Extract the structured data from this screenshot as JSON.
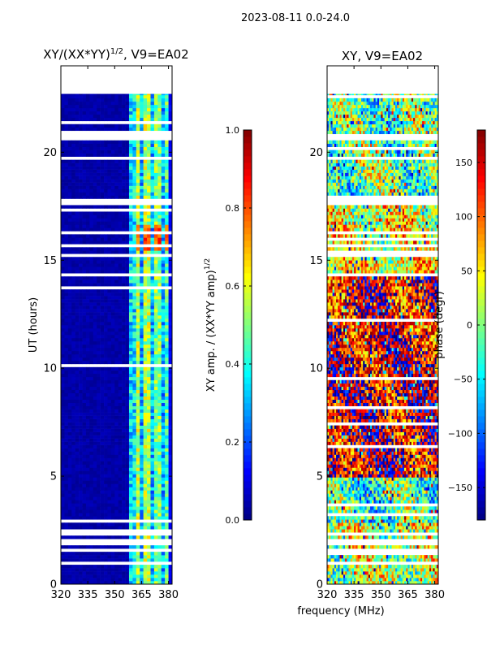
{
  "figure": {
    "suptitle": "2023-08-11 0.0-24.0",
    "shared_xlabel": "frequency (MHz)"
  },
  "chart_data": [
    {
      "type": "heatmap",
      "title": "XY/(XX*YY)",
      "title_exponent": "1/2",
      "title_suffix": ", V9=EA02",
      "xlabel": "",
      "ylabel": "UT (hours)",
      "xlim": [
        320,
        382
      ],
      "ylim": [
        0,
        24
      ],
      "xticks": [
        "320",
        "335",
        "350",
        "365",
        "380"
      ],
      "xtick_values": [
        320,
        335,
        350,
        365,
        380
      ],
      "yticks": [
        "0",
        "5",
        "10",
        "15",
        "20"
      ],
      "ytick_values": [
        0,
        5,
        10,
        15,
        20
      ],
      "colormap": "jet",
      "colorbar": {
        "label": "XY amp. / (XX*YY amp)",
        "label_exponent": "1/2",
        "range": [
          0.0,
          1.0
        ],
        "ticks": [
          "0.0",
          "0.2",
          "0.4",
          "0.6",
          "0.8",
          "1.0"
        ],
        "tick_values": [
          0.0,
          0.2,
          0.4,
          0.6,
          0.8,
          1.0
        ]
      },
      "data_extent_hours": [
        0.0,
        22.7
      ],
      "gaps_hours": [
        [
          0.9,
          1.0
        ],
        [
          1.5,
          1.7
        ],
        [
          1.85,
          2.05
        ],
        [
          2.3,
          2.4
        ],
        [
          4.9,
          5.0
        ],
        [
          5.55,
          5.6
        ],
        [
          9.4,
          9.5
        ],
        [
          14.3,
          14.4
        ],
        [
          15.2,
          15.3
        ],
        [
          15.6,
          15.7
        ],
        [
          16.2,
          16.3
        ],
        [
          17.6,
          17.8
        ],
        [
          18.7,
          18.8
        ],
        [
          19.7,
          19.8
        ],
        [
          20.6,
          20.8
        ],
        [
          21.45,
          21.5
        ]
      ],
      "band_structure_mhz": [
        {
          "from": 320,
          "to": 358,
          "level": 0.02
        },
        {
          "from": 358,
          "to": 362,
          "level": 0.35
        },
        {
          "from": 362,
          "to": 365,
          "level": 0.55
        },
        {
          "from": 365,
          "to": 367,
          "level": 0.3
        },
        {
          "from": 367,
          "to": 370,
          "level": 0.55
        },
        {
          "from": 370,
          "to": 373,
          "level": 0.3
        },
        {
          "from": 373,
          "to": 376,
          "level": 0.5
        },
        {
          "from": 376,
          "to": 378,
          "level": 0.3
        },
        {
          "from": 378,
          "to": 380,
          "level": 0.45
        },
        {
          "from": 380,
          "to": 382,
          "level": 0.1
        }
      ]
    },
    {
      "type": "heatmap",
      "title": "XY, V9=EA02",
      "xlabel": "frequency (MHz)",
      "ylabel": "",
      "xlim": [
        320,
        382
      ],
      "ylim": [
        0,
        24
      ],
      "xticks": [
        "320",
        "335",
        "350",
        "365",
        "380"
      ],
      "xtick_values": [
        320,
        335,
        350,
        365,
        380
      ],
      "yticks": [
        "0",
        "5",
        "10",
        "15",
        "20"
      ],
      "ytick_values": [
        0,
        5,
        10,
        15,
        20
      ],
      "colormap": "jet",
      "colorbar": {
        "label": "phase (degr)",
        "range": [
          -180,
          180
        ],
        "ticks": [
          "−150",
          "−100",
          "−50",
          "0",
          "50",
          "100",
          "150"
        ],
        "tick_values": [
          -150,
          -100,
          -50,
          0,
          50,
          100,
          150
        ]
      },
      "data_extent_hours": [
        0.0,
        22.7
      ],
      "gaps_hours": [
        [
          0.9,
          1.0
        ],
        [
          1.5,
          1.7
        ],
        [
          1.85,
          2.05
        ],
        [
          2.3,
          2.4
        ],
        [
          4.9,
          5.0
        ],
        [
          5.55,
          5.6
        ],
        [
          9.4,
          9.5
        ],
        [
          14.3,
          14.4
        ],
        [
          15.2,
          15.3
        ],
        [
          15.6,
          15.7
        ],
        [
          16.2,
          16.3
        ],
        [
          17.6,
          17.8
        ],
        [
          18.7,
          18.8
        ],
        [
          19.7,
          19.8
        ],
        [
          20.6,
          20.8
        ],
        [
          21.45,
          21.5
        ]
      ],
      "phase_regimes_hours": [
        {
          "from": 0.0,
          "to": 2.8,
          "dominant_deg": 20
        },
        {
          "from": 2.8,
          "to": 5.0,
          "dominant_deg": -20
        },
        {
          "from": 5.0,
          "to": 10.5,
          "dominant_deg": 150
        },
        {
          "from": 10.5,
          "to": 14.3,
          "dominant_deg": 140
        },
        {
          "from": 14.3,
          "to": 17.6,
          "dominant_deg": 40
        },
        {
          "from": 17.8,
          "to": 22.7,
          "dominant_deg": -10
        }
      ]
    }
  ]
}
